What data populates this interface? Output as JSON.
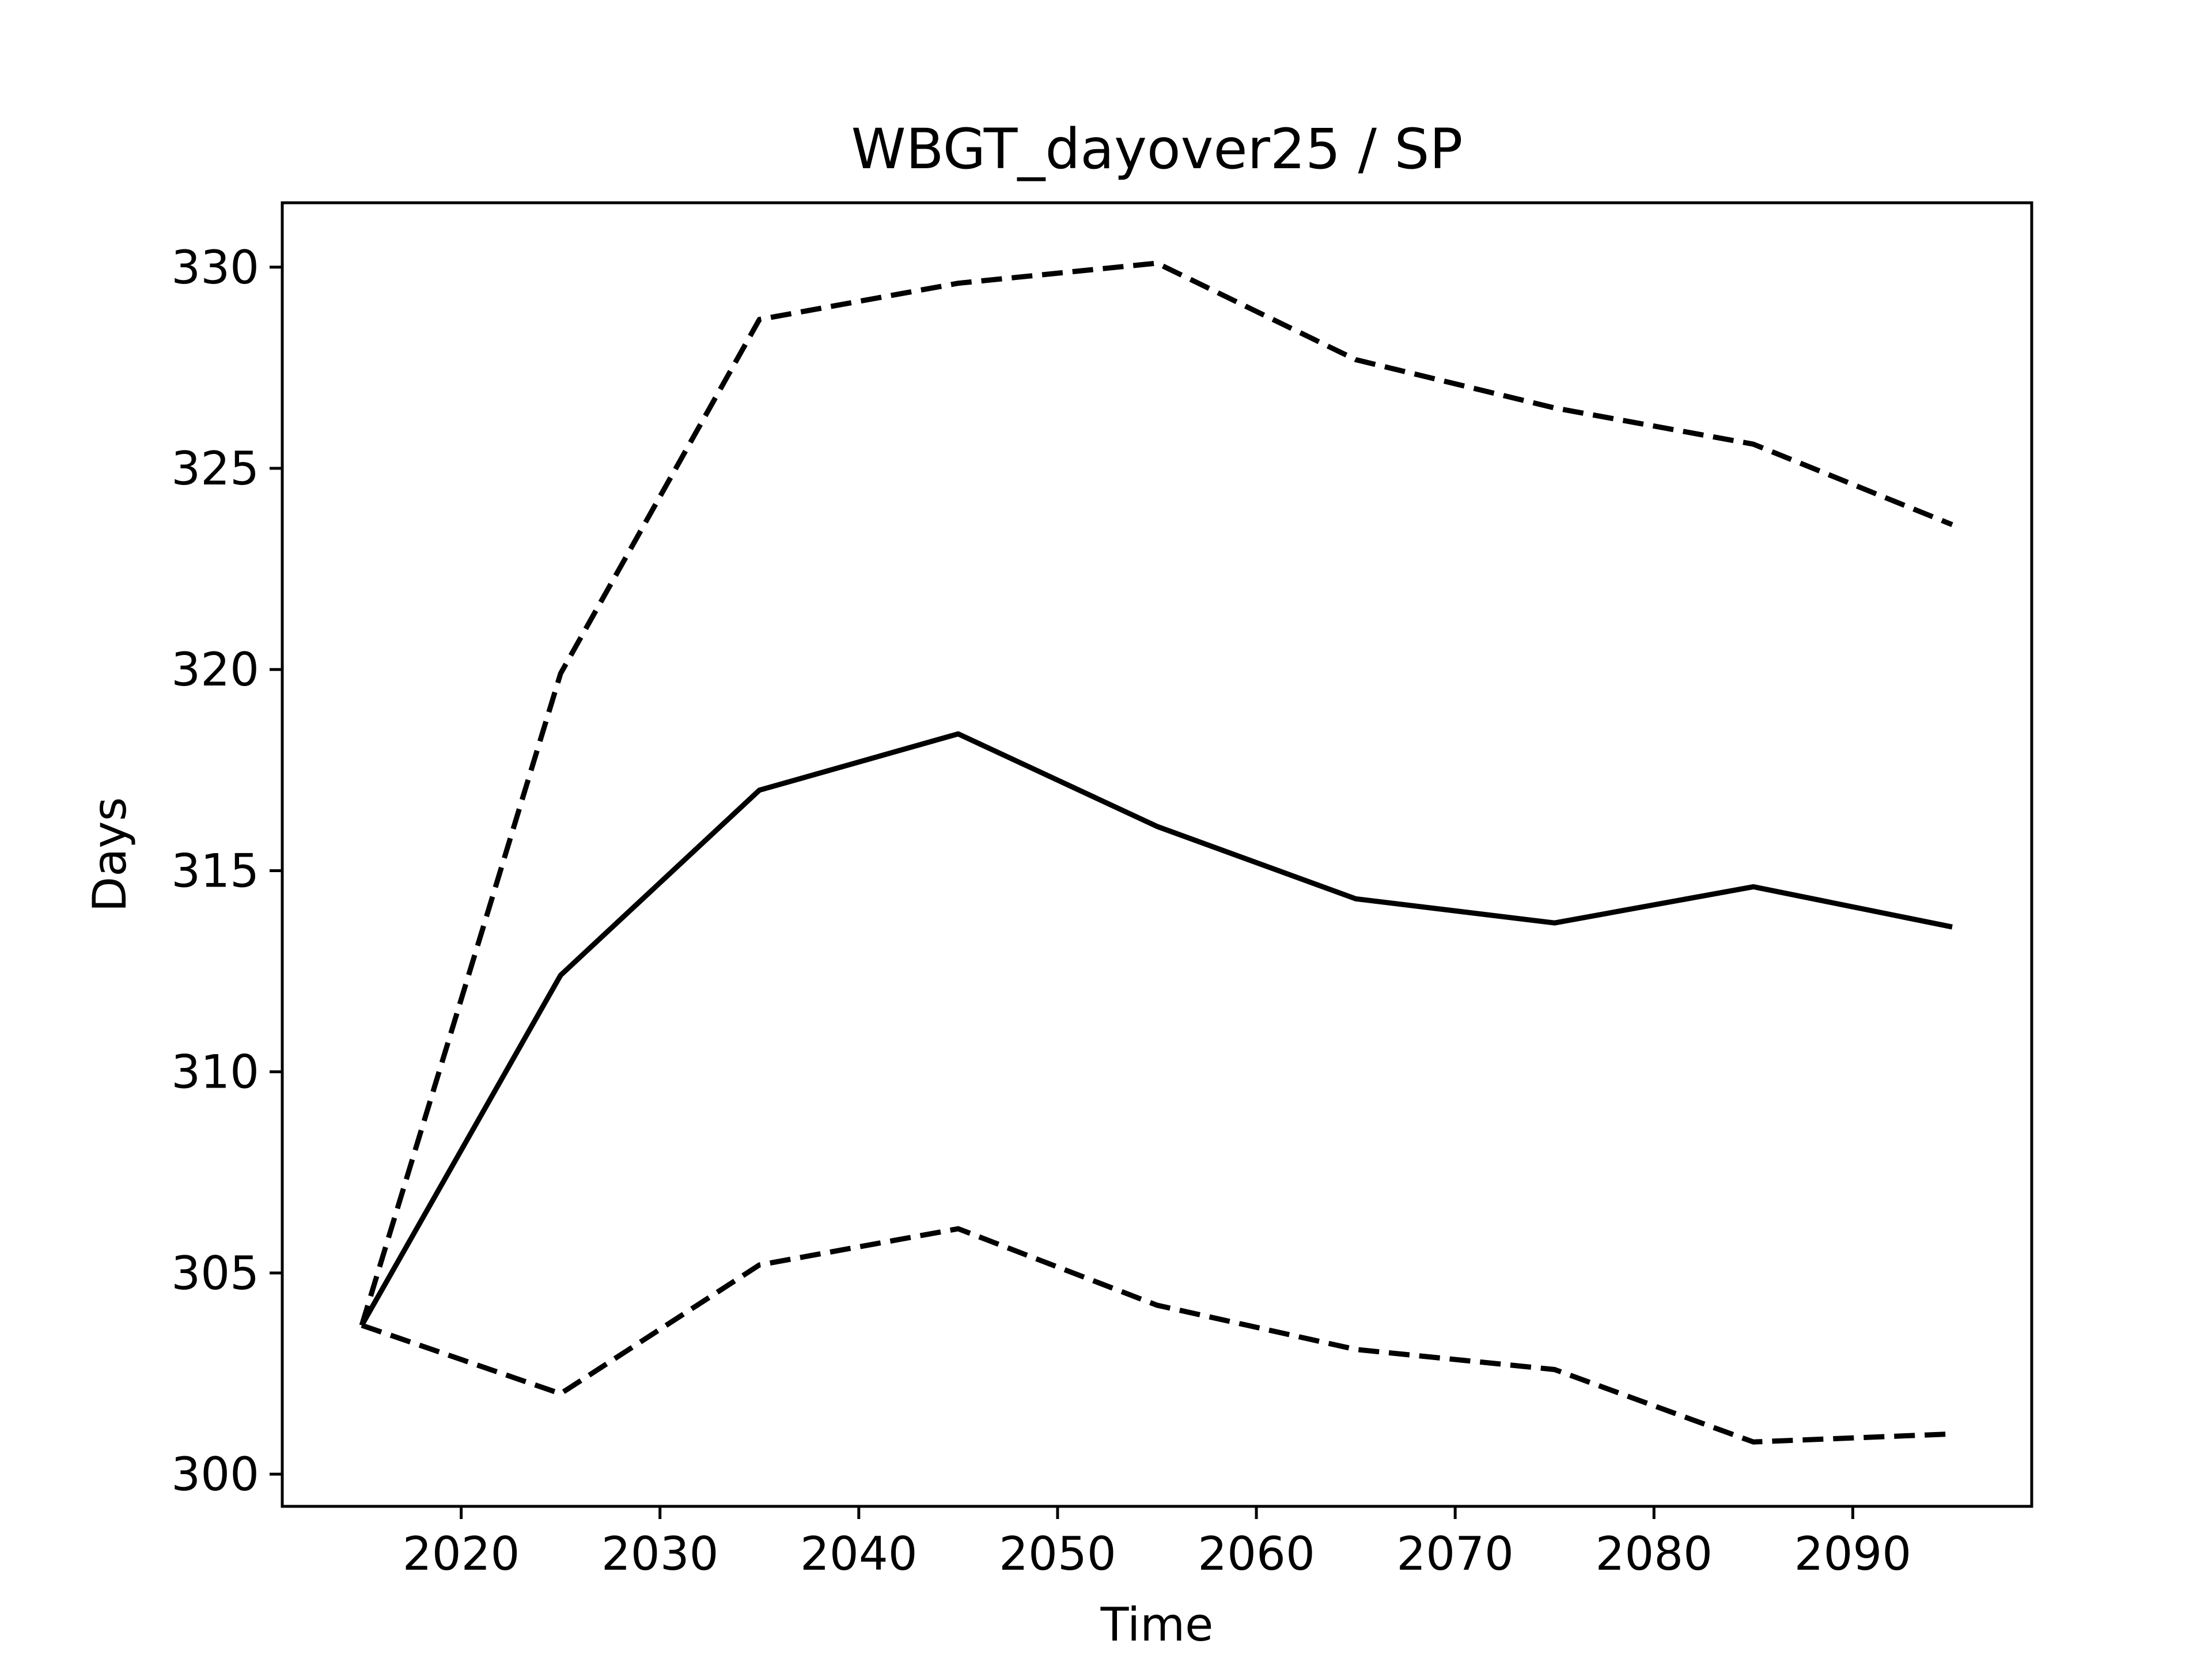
{
  "chart_data": {
    "type": "line",
    "title": "WBGT_dayover25 / SP",
    "xlabel": "Time",
    "ylabel": "Days",
    "x": [
      2015,
      2025,
      2035,
      2045,
      2055,
      2065,
      2075,
      2085,
      2095
    ],
    "series": [
      {
        "style": "solid",
        "color": "#000000",
        "values": [
          303.7,
          312.4,
          317.0,
          318.4,
          316.1,
          314.3,
          313.7,
          314.6,
          313.6
        ]
      },
      {
        "style": "dashed",
        "color": "#000000",
        "values": [
          303.7,
          319.9,
          328.7,
          329.6,
          330.1,
          327.7,
          326.5,
          325.6,
          323.6
        ]
      },
      {
        "style": "dashed",
        "color": "#000000",
        "values": [
          303.7,
          302.0,
          305.2,
          306.1,
          304.2,
          303.1,
          302.6,
          300.8,
          301.0
        ]
      }
    ],
    "xlim": [
      2011,
      2099
    ],
    "ylim": [
      299.2,
      331.6
    ],
    "xticks": [
      2020,
      2030,
      2040,
      2050,
      2060,
      2070,
      2080,
      2090
    ],
    "yticks": [
      300,
      305,
      310,
      315,
      320,
      325,
      330
    ],
    "grid": false,
    "legend": "none"
  }
}
